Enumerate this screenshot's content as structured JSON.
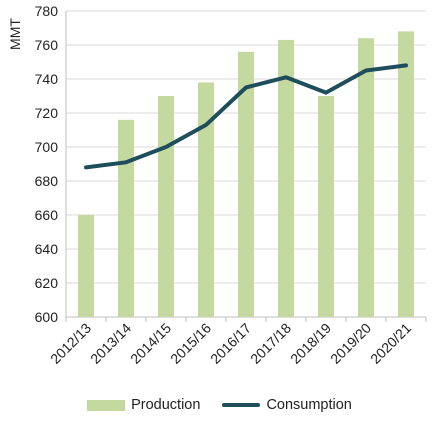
{
  "chart_data": {
    "type": "bar",
    "ylabel": "MMT",
    "ylim": [
      600,
      780
    ],
    "yticks": [
      600,
      620,
      640,
      660,
      680,
      700,
      720,
      740,
      760,
      780
    ],
    "categories": [
      "2012/13",
      "2013/14",
      "2014/15",
      "2015/16",
      "2016/17",
      "2017/18",
      "2018/19",
      "2019/20",
      "2020/21"
    ],
    "series": [
      {
        "name": "Production",
        "type": "bar",
        "color": "#c4d9a0",
        "values": [
          660,
          716,
          730,
          738,
          756,
          763,
          730,
          764,
          768
        ]
      },
      {
        "name": "Consumption",
        "type": "line",
        "color": "#1e4d5c",
        "values": [
          688,
          691,
          700,
          713,
          735,
          741,
          732,
          745,
          748
        ]
      }
    ],
    "grid": true,
    "legend_position": "bottom"
  }
}
